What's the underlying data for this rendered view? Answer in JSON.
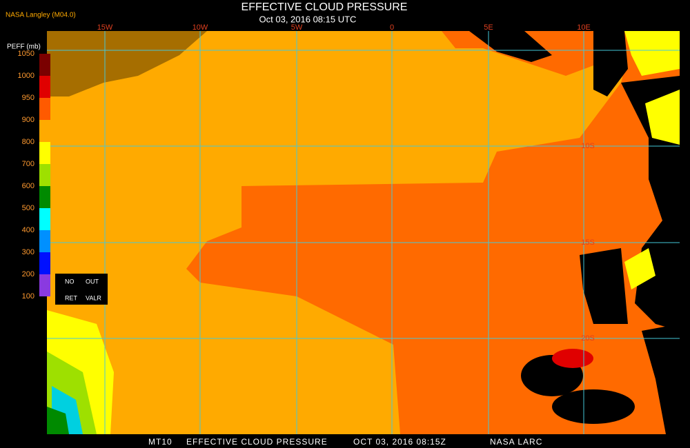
{
  "header": {
    "title": "EFFECTIVE CLOUD PRESSURE",
    "subtitle": "Oct 03, 2016 08:15 UTC",
    "source": "NASA Langley (M04.0)"
  },
  "legend": {
    "title": "PEFF (mb)",
    "labels": [
      "1050",
      "1000",
      "950",
      "900",
      "800",
      "700",
      "600",
      "500",
      "400",
      "300",
      "200",
      "100"
    ],
    "colors": [
      "#7a0000",
      "#e00000",
      "#ff5a00",
      "#ffaa00",
      "#ffff00",
      "#9ee000",
      "#008a00",
      "#00ffff",
      "#0090ff",
      "#0010ff",
      "#8a3ae0"
    ],
    "no_retrieval": [
      "NO",
      "OUT",
      "RET",
      "VALR"
    ]
  },
  "grid": {
    "longitudes": [
      "15W",
      "10W",
      "5W",
      "0",
      "5E",
      "10E"
    ],
    "latitudes": [
      "10S",
      "15S",
      "20S"
    ]
  },
  "footer": [
    "MT10",
    "EFFECTIVE CLOUD PRESSURE",
    "OCT 03, 2016 08:15Z",
    "NASA LARC"
  ]
}
